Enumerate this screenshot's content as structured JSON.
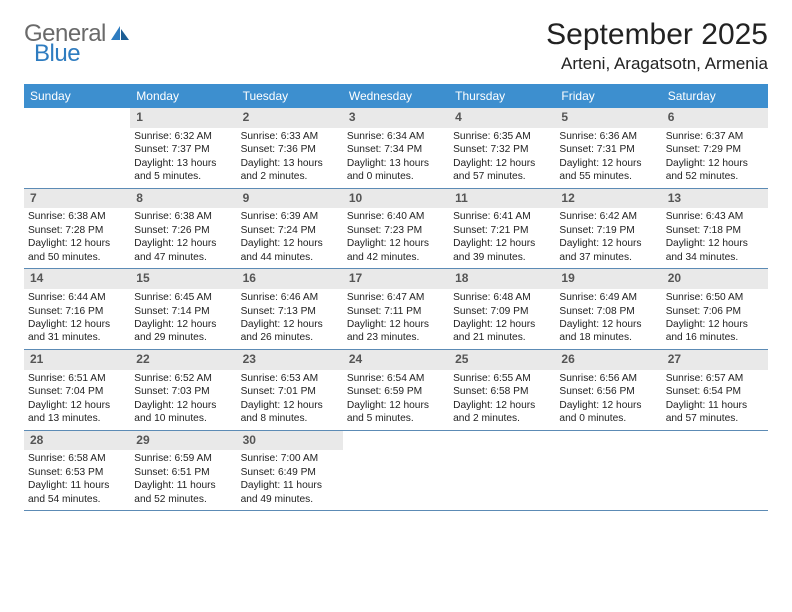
{
  "brand": {
    "word1": "General",
    "word2": "Blue"
  },
  "title": "September 2025",
  "location": "Arteni, Aragatsotn, Armenia",
  "colors": {
    "header_bg": "#3d8fcf",
    "header_text": "#ffffff",
    "daynum_bg": "#e9e9e9",
    "daynum_text": "#555555",
    "row_border": "#5c8bb5",
    "logo_gray": "#6a6a6a",
    "logo_blue": "#2e7cc0",
    "text": "#222222",
    "background": "#ffffff"
  },
  "weekdays": [
    "Sunday",
    "Monday",
    "Tuesday",
    "Wednesday",
    "Thursday",
    "Friday",
    "Saturday"
  ],
  "weeks": [
    [
      null,
      {
        "n": "1",
        "sunrise": "Sunrise: 6:32 AM",
        "sunset": "Sunset: 7:37 PM",
        "daylight": "Daylight: 13 hours and 5 minutes."
      },
      {
        "n": "2",
        "sunrise": "Sunrise: 6:33 AM",
        "sunset": "Sunset: 7:36 PM",
        "daylight": "Daylight: 13 hours and 2 minutes."
      },
      {
        "n": "3",
        "sunrise": "Sunrise: 6:34 AM",
        "sunset": "Sunset: 7:34 PM",
        "daylight": "Daylight: 13 hours and 0 minutes."
      },
      {
        "n": "4",
        "sunrise": "Sunrise: 6:35 AM",
        "sunset": "Sunset: 7:32 PM",
        "daylight": "Daylight: 12 hours and 57 minutes."
      },
      {
        "n": "5",
        "sunrise": "Sunrise: 6:36 AM",
        "sunset": "Sunset: 7:31 PM",
        "daylight": "Daylight: 12 hours and 55 minutes."
      },
      {
        "n": "6",
        "sunrise": "Sunrise: 6:37 AM",
        "sunset": "Sunset: 7:29 PM",
        "daylight": "Daylight: 12 hours and 52 minutes."
      }
    ],
    [
      {
        "n": "7",
        "sunrise": "Sunrise: 6:38 AM",
        "sunset": "Sunset: 7:28 PM",
        "daylight": "Daylight: 12 hours and 50 minutes."
      },
      {
        "n": "8",
        "sunrise": "Sunrise: 6:38 AM",
        "sunset": "Sunset: 7:26 PM",
        "daylight": "Daylight: 12 hours and 47 minutes."
      },
      {
        "n": "9",
        "sunrise": "Sunrise: 6:39 AM",
        "sunset": "Sunset: 7:24 PM",
        "daylight": "Daylight: 12 hours and 44 minutes."
      },
      {
        "n": "10",
        "sunrise": "Sunrise: 6:40 AM",
        "sunset": "Sunset: 7:23 PM",
        "daylight": "Daylight: 12 hours and 42 minutes."
      },
      {
        "n": "11",
        "sunrise": "Sunrise: 6:41 AM",
        "sunset": "Sunset: 7:21 PM",
        "daylight": "Daylight: 12 hours and 39 minutes."
      },
      {
        "n": "12",
        "sunrise": "Sunrise: 6:42 AM",
        "sunset": "Sunset: 7:19 PM",
        "daylight": "Daylight: 12 hours and 37 minutes."
      },
      {
        "n": "13",
        "sunrise": "Sunrise: 6:43 AM",
        "sunset": "Sunset: 7:18 PM",
        "daylight": "Daylight: 12 hours and 34 minutes."
      }
    ],
    [
      {
        "n": "14",
        "sunrise": "Sunrise: 6:44 AM",
        "sunset": "Sunset: 7:16 PM",
        "daylight": "Daylight: 12 hours and 31 minutes."
      },
      {
        "n": "15",
        "sunrise": "Sunrise: 6:45 AM",
        "sunset": "Sunset: 7:14 PM",
        "daylight": "Daylight: 12 hours and 29 minutes."
      },
      {
        "n": "16",
        "sunrise": "Sunrise: 6:46 AM",
        "sunset": "Sunset: 7:13 PM",
        "daylight": "Daylight: 12 hours and 26 minutes."
      },
      {
        "n": "17",
        "sunrise": "Sunrise: 6:47 AM",
        "sunset": "Sunset: 7:11 PM",
        "daylight": "Daylight: 12 hours and 23 minutes."
      },
      {
        "n": "18",
        "sunrise": "Sunrise: 6:48 AM",
        "sunset": "Sunset: 7:09 PM",
        "daylight": "Daylight: 12 hours and 21 minutes."
      },
      {
        "n": "19",
        "sunrise": "Sunrise: 6:49 AM",
        "sunset": "Sunset: 7:08 PM",
        "daylight": "Daylight: 12 hours and 18 minutes."
      },
      {
        "n": "20",
        "sunrise": "Sunrise: 6:50 AM",
        "sunset": "Sunset: 7:06 PM",
        "daylight": "Daylight: 12 hours and 16 minutes."
      }
    ],
    [
      {
        "n": "21",
        "sunrise": "Sunrise: 6:51 AM",
        "sunset": "Sunset: 7:04 PM",
        "daylight": "Daylight: 12 hours and 13 minutes."
      },
      {
        "n": "22",
        "sunrise": "Sunrise: 6:52 AM",
        "sunset": "Sunset: 7:03 PM",
        "daylight": "Daylight: 12 hours and 10 minutes."
      },
      {
        "n": "23",
        "sunrise": "Sunrise: 6:53 AM",
        "sunset": "Sunset: 7:01 PM",
        "daylight": "Daylight: 12 hours and 8 minutes."
      },
      {
        "n": "24",
        "sunrise": "Sunrise: 6:54 AM",
        "sunset": "Sunset: 6:59 PM",
        "daylight": "Daylight: 12 hours and 5 minutes."
      },
      {
        "n": "25",
        "sunrise": "Sunrise: 6:55 AM",
        "sunset": "Sunset: 6:58 PM",
        "daylight": "Daylight: 12 hours and 2 minutes."
      },
      {
        "n": "26",
        "sunrise": "Sunrise: 6:56 AM",
        "sunset": "Sunset: 6:56 PM",
        "daylight": "Daylight: 12 hours and 0 minutes."
      },
      {
        "n": "27",
        "sunrise": "Sunrise: 6:57 AM",
        "sunset": "Sunset: 6:54 PM",
        "daylight": "Daylight: 11 hours and 57 minutes."
      }
    ],
    [
      {
        "n": "28",
        "sunrise": "Sunrise: 6:58 AM",
        "sunset": "Sunset: 6:53 PM",
        "daylight": "Daylight: 11 hours and 54 minutes."
      },
      {
        "n": "29",
        "sunrise": "Sunrise: 6:59 AM",
        "sunset": "Sunset: 6:51 PM",
        "daylight": "Daylight: 11 hours and 52 minutes."
      },
      {
        "n": "30",
        "sunrise": "Sunrise: 7:00 AM",
        "sunset": "Sunset: 6:49 PM",
        "daylight": "Daylight: 11 hours and 49 minutes."
      },
      null,
      null,
      null,
      null
    ]
  ]
}
